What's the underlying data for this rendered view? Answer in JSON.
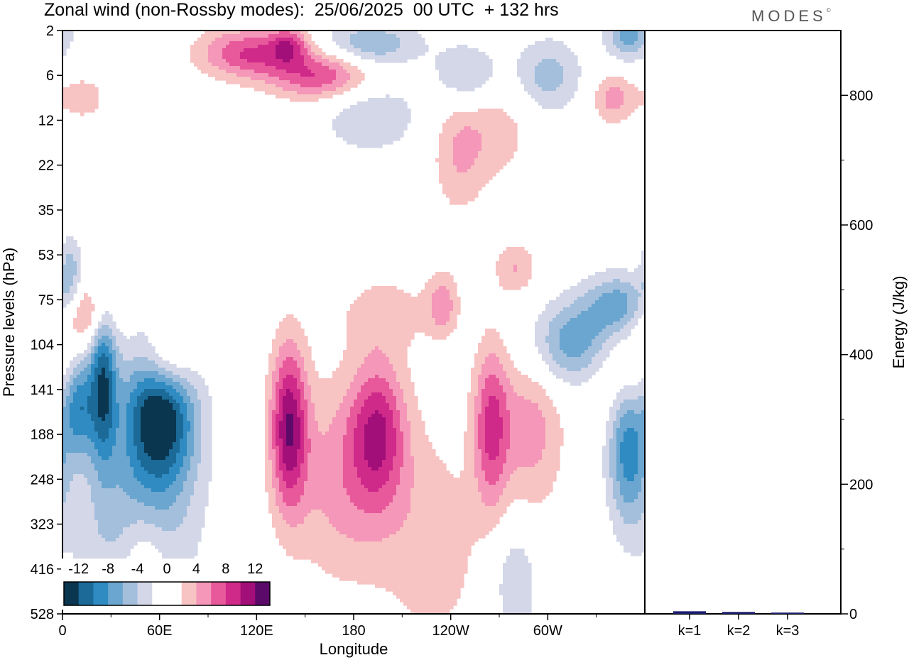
{
  "header": {
    "title": "Zonal wind (non-Rossby modes):  25/06/2025  00 UTC  + 132 hrs",
    "brand": "MODES",
    "brand_mark": "©"
  },
  "chart_data": [
    {
      "type": "heatmap",
      "title": "Zonal wind (non-Rossby modes):  25/06/2025  00 UTC  + 132 hrs",
      "xlabel": "Longitude",
      "ylabel": "Pressure levels (hPa)",
      "x_tick_labels": [
        "0",
        "60E",
        "120E",
        "180",
        "120W",
        "60W"
      ],
      "x_ticks_deg": [
        0,
        60,
        120,
        180,
        240,
        300
      ],
      "xlim": [
        0,
        360
      ],
      "y_tick_labels": [
        "2",
        "6",
        "12",
        "22",
        "35",
        "53",
        "75",
        "104",
        "141",
        "188",
        "248",
        "323",
        "416",
        "528"
      ],
      "colorbar": {
        "labels": [
          "-12",
          "-8",
          "-4",
          "0",
          "4",
          "8",
          "12"
        ],
        "levels": [
          -14,
          -12,
          -10,
          -8,
          -6,
          -4,
          -2,
          0,
          2,
          4,
          6,
          8,
          10,
          12,
          14
        ],
        "colors": [
          "#0b3650",
          "#1b6a98",
          "#2f8bc1",
          "#6aa6cf",
          "#a3bfdc",
          "#d3d7e8",
          "#ffffff",
          "#ffffff",
          "#f8c3c3",
          "#f497b8",
          "#e8599b",
          "#cf2a8a",
          "#a30f79",
          "#5c0a6a"
        ]
      },
      "blobs": [
        {
          "lon": 60,
          "level": 8.5,
          "value": -14,
          "sx": 16,
          "sy": 1.2
        },
        {
          "lon": 25,
          "level": 7.8,
          "value": -11,
          "sx": 6,
          "sy": 1.3
        },
        {
          "lon": 10,
          "level": 8.3,
          "value": -9,
          "sx": 7,
          "sy": 0.8
        },
        {
          "lon": 350,
          "level": 9.3,
          "value": -9,
          "sx": 9,
          "sy": 1.2
        },
        {
          "lon": 320,
          "level": 7.0,
          "value": -9,
          "sx": 22,
          "sy": 0.7
        },
        {
          "lon": 345,
          "level": 6.1,
          "value": -7,
          "sx": 15,
          "sy": 0.5
        },
        {
          "lon": 5,
          "level": 5.4,
          "value": -5,
          "sx": 5,
          "sy": 0.6
        },
        {
          "lon": 45,
          "level": 11,
          "value": -5,
          "sx": 28,
          "sy": 1.6
        },
        {
          "lon": 280,
          "level": 12.3,
          "value": -4,
          "sx": 10,
          "sy": 1.0
        },
        {
          "lon": 190,
          "level": 0.3,
          "value": -6,
          "sx": 22,
          "sy": 0.35
        },
        {
          "lon": 250,
          "level": 1.0,
          "value": -5,
          "sx": 14,
          "sy": 0.5
        },
        {
          "lon": 300,
          "level": 1.0,
          "value": -5,
          "sx": 15,
          "sy": 0.6
        },
        {
          "lon": 190,
          "level": 1.9,
          "value": -4,
          "sx": 22,
          "sy": 0.6
        },
        {
          "lon": 350,
          "level": 0.1,
          "value": -7,
          "sx": 10,
          "sy": 0.4
        },
        {
          "lon": 140,
          "level": 8.8,
          "value": 11,
          "sx": 8,
          "sy": 1.3
        },
        {
          "lon": 195,
          "level": 8.9,
          "value": 8,
          "sx": 12,
          "sy": 1.1
        },
        {
          "lon": 175,
          "level": 10,
          "value": 5,
          "sx": 25,
          "sy": 1.6
        },
        {
          "lon": 265,
          "level": 8.8,
          "value": 8,
          "sx": 8,
          "sy": 1.3
        },
        {
          "lon": 290,
          "level": 8.8,
          "value": 5,
          "sx": 14,
          "sy": 1.4
        },
        {
          "lon": 345,
          "level": 7.3,
          "value": 6,
          "sx": 18,
          "sy": 0.8
        },
        {
          "lon": 65,
          "level": 7.3,
          "value": 7,
          "sx": 12,
          "sy": 0.6
        },
        {
          "lon": 15,
          "level": 6.3,
          "value": 6,
          "sx": 12,
          "sy": 0.5
        },
        {
          "lon": 160,
          "level": 1.0,
          "value": 8,
          "sx": 22,
          "sy": 0.4
        },
        {
          "lon": 115,
          "level": 0.5,
          "value": 8,
          "sx": 22,
          "sy": 0.4
        },
        {
          "lon": 140,
          "level": 0.3,
          "value": 6,
          "sx": 8,
          "sy": 0.3
        },
        {
          "lon": 245,
          "level": 2.7,
          "value": 4,
          "sx": 12,
          "sy": 1.0
        },
        {
          "lon": 270,
          "level": 2.2,
          "value": 3,
          "sx": 15,
          "sy": 0.8
        },
        {
          "lon": 280,
          "level": 5.3,
          "value": 4,
          "sx": 9,
          "sy": 0.4
        },
        {
          "lon": 235,
          "level": 6.1,
          "value": 5,
          "sx": 7,
          "sy": 0.5
        },
        {
          "lon": 200,
          "level": 6.3,
          "value": 3,
          "sx": 20,
          "sy": 0.6
        },
        {
          "lon": 230,
          "level": 11.5,
          "value": 3,
          "sx": 22,
          "sy": 1.8
        },
        {
          "lon": 50,
          "level": 12.3,
          "value": 5,
          "sx": 10,
          "sy": 1.1
        },
        {
          "lon": 340,
          "level": 1.5,
          "value": 5,
          "sx": 9,
          "sy": 0.4
        },
        {
          "lon": 12,
          "level": 1.5,
          "value": 3,
          "sx": 12,
          "sy": 0.4
        }
      ]
    },
    {
      "type": "bar",
      "categories": [
        "k=1",
        "k=2",
        "k=3"
      ],
      "values": [
        4,
        3,
        2
      ],
      "ylabel": "Energy (J/kg)",
      "ylim": [
        0,
        900
      ],
      "y_tick_labels": [
        "0",
        "200",
        "400",
        "600",
        "800"
      ],
      "y_ticks": [
        0,
        200,
        400,
        600,
        800
      ],
      "bar_color": "#1c1c6e"
    }
  ]
}
